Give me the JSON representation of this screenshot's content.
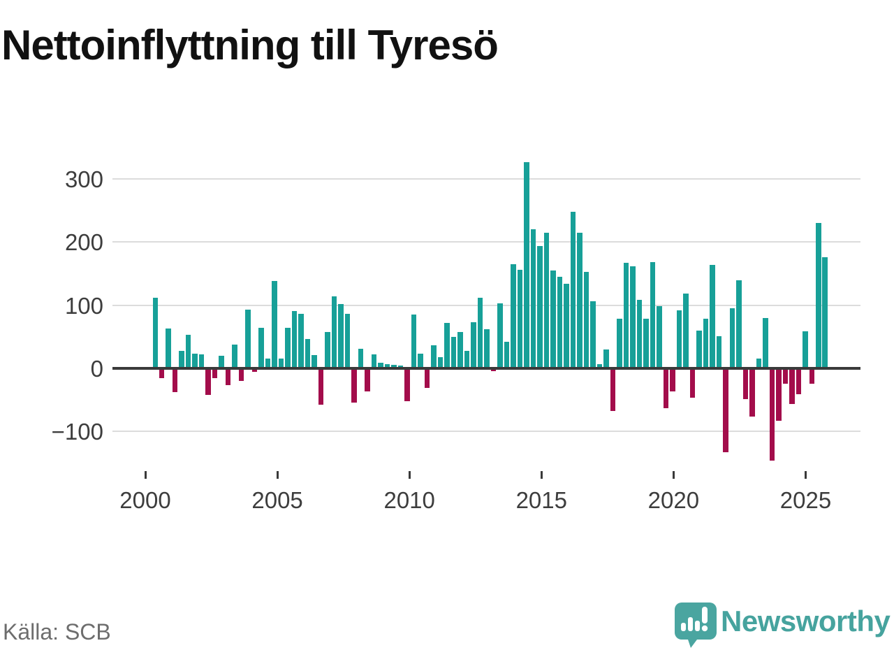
{
  "title": "Nettoinflyttning till Tyresö",
  "source": "Källa: SCB",
  "branding": {
    "name": "Newsworthy",
    "icon": "newsworthy-bubble-bar-chart-icon",
    "color": "#46a39e"
  },
  "colors": {
    "positive": "#17a098",
    "negative": "#a30d4b",
    "grid": "#dcdcdc",
    "axis_line": "#3a3a3a",
    "axis_text": "#3d3d3d",
    "title_text": "#111111",
    "source_text": "#6d6d6d"
  },
  "chart_data": {
    "type": "bar",
    "title": "Nettoinflyttning till Tyresö",
    "xlabel": "",
    "ylabel": "",
    "grid": "horizontal",
    "legend": "none",
    "ylim": [
      -160,
      340
    ],
    "y_ticks": [
      300,
      200,
      100,
      0,
      -100
    ],
    "y_tick_labels": [
      "300",
      "200",
      "100",
      "0",
      "−100"
    ],
    "x_ticks": [
      2000,
      2005,
      2010,
      2015,
      2020,
      2025
    ],
    "x_tick_labels": [
      "2000",
      "2005",
      "2010",
      "2015",
      "2020",
      "2025"
    ],
    "x": [
      "2000 Q2",
      "2000 Q3",
      "2000 Q4",
      "2001 Q1",
      "2001 Q2",
      "2001 Q3",
      "2001 Q4",
      "2002 Q1",
      "2002 Q2",
      "2002 Q3",
      "2002 Q4",
      "2003 Q1",
      "2003 Q2",
      "2003 Q3",
      "2003 Q4",
      "2004 Q1",
      "2004 Q2",
      "2004 Q3",
      "2004 Q4",
      "2005 Q1",
      "2005 Q2",
      "2005 Q3",
      "2005 Q4",
      "2006 Q1",
      "2006 Q2",
      "2006 Q3",
      "2006 Q4",
      "2007 Q1",
      "2007 Q2",
      "2007 Q3",
      "2007 Q4",
      "2008 Q1",
      "2008 Q2",
      "2008 Q3",
      "2008 Q4",
      "2009 Q1",
      "2009 Q2",
      "2009 Q3",
      "2009 Q4",
      "2010 Q1",
      "2010 Q2",
      "2010 Q3",
      "2010 Q4",
      "2011 Q1",
      "2011 Q2",
      "2011 Q3",
      "2011 Q4",
      "2012 Q1",
      "2012 Q2",
      "2012 Q3",
      "2012 Q4",
      "2013 Q1",
      "2013 Q2",
      "2013 Q3",
      "2013 Q4",
      "2014 Q1",
      "2014 Q2",
      "2014 Q3",
      "2014 Q4",
      "2015 Q1",
      "2015 Q2",
      "2015 Q3",
      "2015 Q4",
      "2016 Q1",
      "2016 Q2",
      "2016 Q3",
      "2016 Q4",
      "2017 Q1",
      "2017 Q2",
      "2017 Q3",
      "2017 Q4",
      "2018 Q1",
      "2018 Q2",
      "2018 Q3",
      "2018 Q4",
      "2019 Q1",
      "2019 Q2",
      "2019 Q3",
      "2019 Q4",
      "2020 Q1",
      "2020 Q2",
      "2020 Q3",
      "2020 Q4",
      "2021 Q1",
      "2021 Q2",
      "2021 Q3",
      "2021 Q4",
      "2022 Q1",
      "2022 Q2",
      "2022 Q3",
      "2022 Q4",
      "2023 Q1",
      "2023 Q2",
      "2023 Q3",
      "2023 Q4",
      "2024 Q1",
      "2024 Q2",
      "2024 Q3",
      "2024 Q4",
      "2025 Q1",
      "2025 Q2",
      "2025 Q3"
    ],
    "values": [
      112,
      -16,
      63,
      -38,
      28,
      53,
      23,
      22,
      -42,
      -15,
      20,
      -26,
      38,
      -20,
      93,
      -6,
      64,
      15,
      138,
      16,
      64,
      91,
      86,
      47,
      21,
      -58,
      57,
      114,
      102,
      86,
      -54,
      31,
      -36,
      22,
      9,
      7,
      6,
      4,
      -52,
      85,
      23,
      -31,
      36,
      18,
      72,
      50,
      58,
      28,
      73,
      112,
      62,
      -4,
      103,
      42,
      165,
      156,
      326,
      220,
      194,
      215,
      155,
      145,
      134,
      248,
      215,
      153,
      106,
      7,
      30,
      -67,
      79,
      167,
      162,
      108,
      79,
      168,
      99,
      -63,
      -36,
      92,
      118,
      -46,
      60,
      78,
      164,
      51,
      -133,
      95,
      139,
      -49,
      -76,
      15,
      80,
      -146,
      -83,
      -24,
      -56,
      -41,
      59,
      -24,
      230,
      176
    ],
    "positive_color": "#17a098",
    "negative_color": "#a30d4b"
  }
}
